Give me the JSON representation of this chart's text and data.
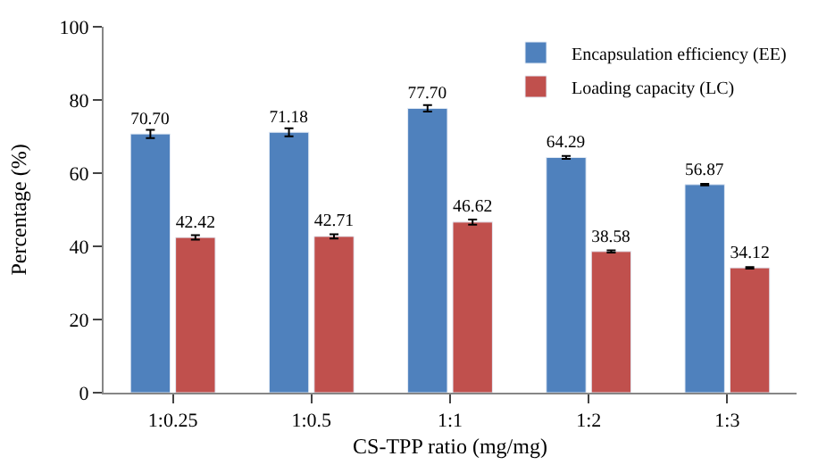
{
  "chart_data": {
    "type": "bar",
    "xlabel": "CS-TPP ratio (mg/mg)",
    "ylabel": "Percentage (%)",
    "categories": [
      "1:0.25",
      "1:0.5",
      "1:1",
      "1:2",
      "1:3"
    ],
    "series": [
      {
        "name": "Encapsulation efficiency (EE)",
        "color": "#4f81bd",
        "values": [
          70.7,
          71.18,
          77.7,
          64.29,
          56.87
        ],
        "value_labels": [
          "70.70",
          "71.18",
          "77.70",
          "64.29",
          "56.87"
        ],
        "errors": [
          1.1,
          1.1,
          0.9,
          0.4,
          0.2
        ]
      },
      {
        "name": "Loading capacity (LC)",
        "color": "#c0504d",
        "values": [
          42.42,
          42.71,
          46.62,
          38.58,
          34.12
        ],
        "value_labels": [
          "42.42",
          "42.71",
          "46.62",
          "38.58",
          "34.12"
        ],
        "errors": [
          0.6,
          0.6,
          0.7,
          0.3,
          0.2
        ]
      }
    ],
    "ylim": [
      0,
      100
    ],
    "yticks": [
      0,
      20,
      40,
      60,
      80,
      100
    ],
    "legend": "top right"
  }
}
